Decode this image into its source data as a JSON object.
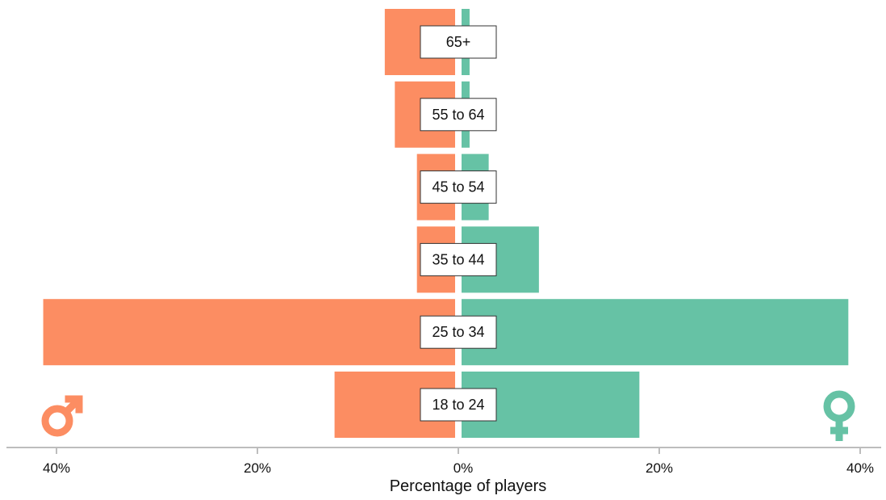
{
  "chart_data": {
    "type": "bar",
    "orientation": "horizontal-diverging",
    "categories": [
      "65+",
      "55 to 64",
      "45 to 54",
      "35 to 44",
      "25 to 34",
      "18 to 24"
    ],
    "series": [
      {
        "values": [
          7.0,
          6.0,
          3.8,
          3.8,
          41.0,
          12.0
        ],
        "side": "left",
        "color": "#fc8d62",
        "icon": "male-symbol-icon"
      },
      {
        "values": [
          0.8,
          0.8,
          2.7,
          7.7,
          38.5,
          17.7
        ],
        "side": "right",
        "color": "#66c2a5",
        "icon": "female-symbol-icon"
      }
    ],
    "xlabel": "Percentage of players",
    "xticks": [
      "40%",
      "20%",
      "0%",
      "20%",
      "40%"
    ],
    "xtick_values": [
      -40,
      -20,
      0,
      20,
      40
    ],
    "xlim": [
      -45,
      45
    ],
    "grid": false,
    "legend": "icons at bottom-left (male) and bottom-right (female)"
  }
}
